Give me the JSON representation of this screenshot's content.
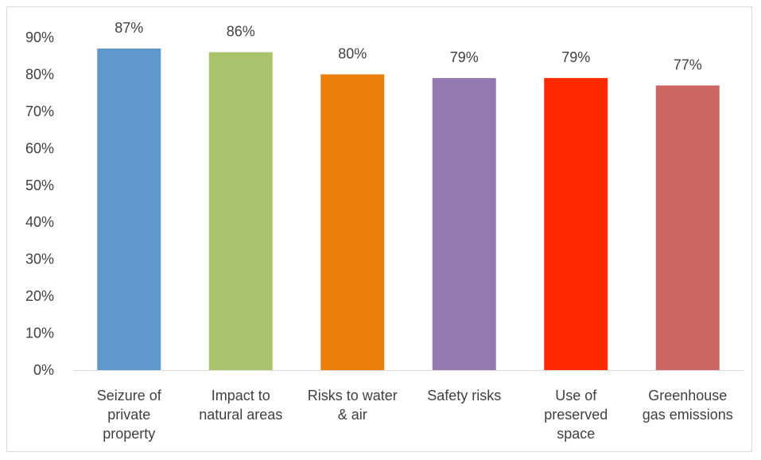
{
  "chart_data": {
    "type": "bar",
    "categories": [
      [
        "Seizure of",
        "private",
        "property"
      ],
      [
        "Impact to",
        "natural areas"
      ],
      [
        "Risks to water",
        "& air"
      ],
      [
        "Safety risks"
      ],
      [
        "Use of",
        "preserved",
        "space"
      ],
      [
        "Greenhouse",
        "gas emissions"
      ]
    ],
    "values": [
      87,
      86,
      80,
      79,
      79,
      77
    ],
    "data_labels": [
      "87%",
      "86%",
      "80%",
      "79%",
      "79%",
      "77%"
    ],
    "colors": [
      "#6097CC",
      "#A9C46C",
      "#EB7F0B",
      "#9479B0",
      "#FF2A00",
      "#CD6660"
    ],
    "ylim": [
      0,
      90
    ],
    "yticks": [
      0,
      10,
      20,
      30,
      40,
      50,
      60,
      70,
      80,
      90
    ],
    "ytick_labels": [
      "0%",
      "10%",
      "20%",
      "30%",
      "40%",
      "50%",
      "60%",
      "70%",
      "80%",
      "90%"
    ],
    "grid": false,
    "legend": "none"
  }
}
